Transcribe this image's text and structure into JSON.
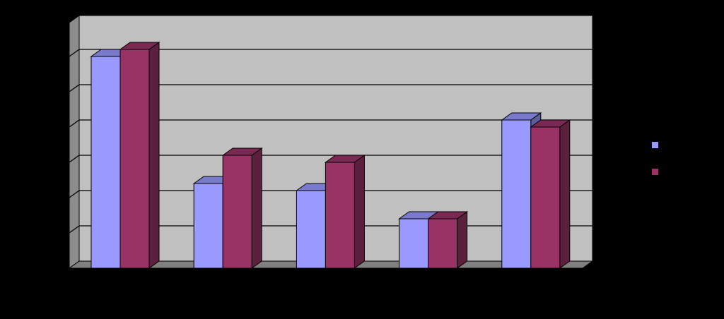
{
  "chart_data": {
    "type": "bar",
    "style": "3d-clustered-column",
    "categories": [
      "",
      "",
      "",
      "",
      ""
    ],
    "series": [
      {
        "values": [
          6.0,
          2.4,
          2.2,
          1.4,
          4.2
        ]
      },
      {
        "values": [
          6.2,
          3.2,
          3.0,
          1.4,
          4.0
        ]
      }
    ],
    "ylim": [
      0,
      7
    ],
    "grid": true,
    "legend_position": "right",
    "colors": {
      "background": "#000000",
      "plot_wall": "#c0c0c0",
      "wall_side": "#8c8c8c",
      "floor": "#7f7f7f",
      "gridline": "#000000",
      "series": [
        "#9999ff",
        "#993366"
      ],
      "series_top": [
        "#7a7acc",
        "#7a2952"
      ],
      "series_side": [
        "#5c5c99",
        "#5c1f3d"
      ]
    }
  }
}
